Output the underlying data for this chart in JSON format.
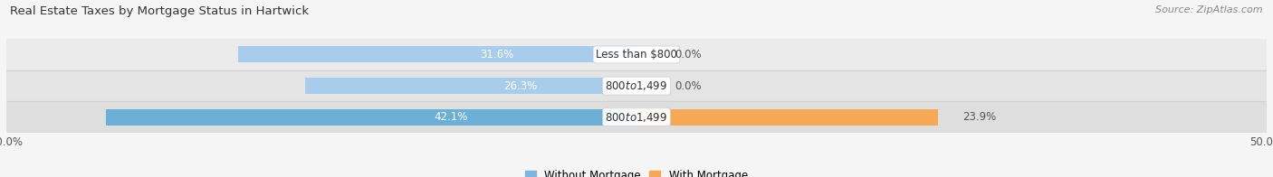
{
  "title": "Real Estate Taxes by Mortgage Status in Hartwick",
  "source": "Source: ZipAtlas.com",
  "categories": [
    "Less than $800",
    "$800 to $1,499",
    "$800 to $1,499"
  ],
  "without_mortgage": [
    31.6,
    26.3,
    42.1
  ],
  "with_mortgage": [
    0.0,
    0.0,
    23.9
  ],
  "blue_colors": [
    "#A8CCEC",
    "#A8CCEC",
    "#6BAED6"
  ],
  "orange_colors": [
    "#F5C9A0",
    "#F5C9A0",
    "#F5A855"
  ],
  "row_bg_colors": [
    "#EBEBEB",
    "#E4E4E4",
    "#DEDEDE"
  ],
  "fig_bg": "#F5F5F5",
  "xlim": [
    -50,
    50
  ],
  "legend_labels": [
    "Without Mortgage",
    "With Mortgage"
  ],
  "blue_legend": "#7EB6E0",
  "orange_legend": "#F5A855",
  "title_fontsize": 9.5,
  "source_fontsize": 8,
  "label_fontsize": 8.5,
  "pct_fontsize": 8.5,
  "axis_fontsize": 8.5
}
